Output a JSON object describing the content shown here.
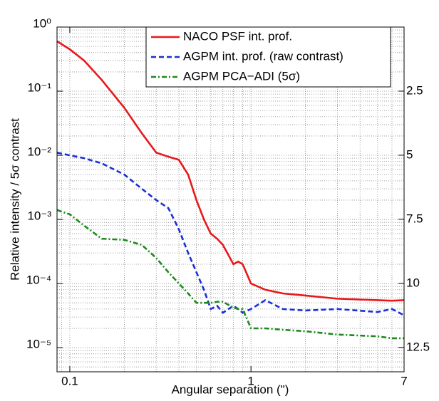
{
  "chart_data": {
    "type": "line",
    "xlabel": "Angular separation (\")",
    "ylabel": "Relative intensity / 5σ contrast",
    "xscale": "log",
    "yscale": "log",
    "grid": true,
    "legend": "upper right",
    "xlim": [
      0.085,
      7
    ],
    "ylim": [
      4.2e-06,
      1
    ],
    "y2lim": [
      13.45,
      0
    ],
    "xticks": [
      0.1,
      1,
      7
    ],
    "yticks": [
      {
        "value": 1,
        "label": "10⁰"
      },
      {
        "value": 0.1,
        "label": "10⁻¹"
      },
      {
        "value": 0.01,
        "label": "10⁻²"
      },
      {
        "value": 0.001,
        "label": "10⁻³"
      },
      {
        "value": 0.0001,
        "label": "10⁻⁴"
      },
      {
        "value": 1e-05,
        "label": "10⁻⁵"
      }
    ],
    "y2ticks": [
      2.5,
      5,
      7.5,
      10,
      12.5
    ],
    "xminorticks": [
      0.09,
      0.2,
      0.3,
      0.4,
      0.5,
      0.6,
      0.7,
      0.8,
      0.9,
      2,
      3,
      4,
      5,
      6
    ],
    "yminorticks": [
      5e-06,
      6e-06,
      7e-06,
      8e-06,
      9e-06,
      2e-05,
      3e-05,
      4e-05,
      5e-05,
      6e-05,
      7e-05,
      8e-05,
      9e-05,
      0.0002,
      0.0003,
      0.0004,
      0.0005,
      0.0006,
      0.0007,
      0.0008,
      0.0009,
      0.002,
      0.003,
      0.004,
      0.005,
      0.006,
      0.007,
      0.008,
      0.009,
      0.02,
      0.03,
      0.04,
      0.05,
      0.06,
      0.07,
      0.08,
      0.09,
      0.2,
      0.3,
      0.4,
      0.5,
      0.6,
      0.7,
      0.8,
      0.9
    ],
    "x": [
      0.085,
      0.1,
      0.12,
      0.15,
      0.2,
      0.25,
      0.3,
      0.35,
      0.4,
      0.45,
      0.5,
      0.55,
      0.6,
      0.65,
      0.7,
      0.8,
      0.85,
      0.9,
      1,
      1.2,
      1.5,
      2,
      3,
      5,
      6,
      7
    ],
    "series": [
      {
        "name": "NACO PSF int. prof.",
        "color": "#e8191b",
        "dash": "solid",
        "values": [
          0.6,
          0.45,
          0.3,
          0.15,
          0.055,
          0.022,
          0.011,
          0.0095,
          0.0085,
          0.005,
          0.002,
          0.001,
          0.0006,
          0.0005,
          0.0004,
          0.0002,
          0.00022,
          0.0002,
          0.0001,
          8e-05,
          7e-05,
          6.5e-05,
          5.8e-05,
          5.5e-05,
          5.4e-05,
          5.5e-05
        ]
      },
      {
        "name": "AGPM int. prof. (raw contrast)",
        "color": "#1a2fd6",
        "dash": "dashed",
        "values": [
          0.011,
          0.01,
          0.009,
          0.0075,
          0.005,
          0.003,
          0.002,
          0.0015,
          0.0007,
          0.0003,
          0.00015,
          8e-05,
          4e-05,
          4.5e-05,
          3.5e-05,
          4.5e-05,
          4e-05,
          3.5e-05,
          4e-05,
          5.5e-05,
          4e-05,
          3.8e-05,
          4e-05,
          3.6e-05,
          4e-05,
          3.2e-05
        ]
      },
      {
        "name": "AGPM PCA−ADI (5σ)",
        "color": "#1e8a1e",
        "dash": "dashdot",
        "values": [
          0.0014,
          0.0012,
          0.0008,
          0.0005,
          0.00048,
          0.0004,
          0.00025,
          0.00015,
          0.0001,
          7e-05,
          5e-05,
          5e-05,
          5e-05,
          5.2e-05,
          5.2e-05,
          4.2e-05,
          4e-05,
          4e-05,
          2e-05,
          2e-05,
          1.9e-05,
          1.8e-05,
          1.6e-05,
          1.5e-05,
          1.4e-05,
          1.4e-05
        ]
      }
    ]
  }
}
